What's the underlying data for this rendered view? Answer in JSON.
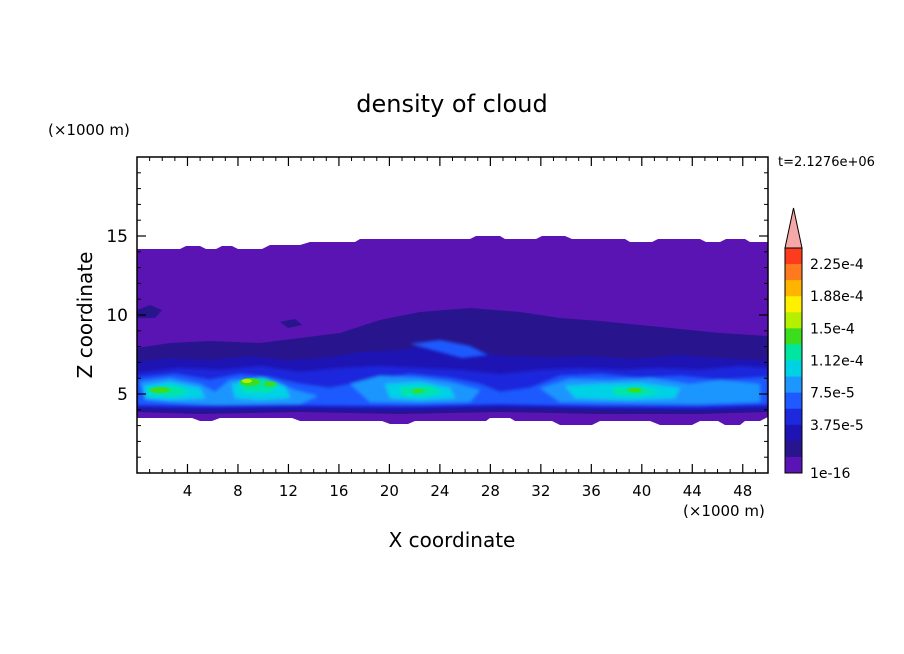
{
  "chart_data": {
    "type": "heatmap",
    "title": "density of cloud",
    "xlabel": "X coordinate",
    "ylabel": "Z coordinate",
    "x_unit": "(×1000 m)",
    "y_unit": "(×1000 m)",
    "time_label": "t=2.1276e+06",
    "xlim": [
      0,
      50
    ],
    "ylim": [
      0,
      20
    ],
    "x_ticks": [
      4,
      8,
      12,
      16,
      20,
      24,
      28,
      32,
      36,
      40,
      44,
      48
    ],
    "y_ticks": [
      5,
      10,
      15
    ],
    "colorbar_labels": [
      "2.25e-4",
      "1.88e-4",
      "1.5e-4",
      "1.12e-4",
      "7.5e-5",
      "3.75e-5",
      "1e-16"
    ],
    "colorbar_colors": [
      "#ff3b1e",
      "#ff7a1e",
      "#ffb400",
      "#fff000",
      "#b4f000",
      "#3cdc1e",
      "#00e6a0",
      "#00d2e6",
      "#1e96ff",
      "#1e5aff",
      "#1e28dc",
      "#1e14b4",
      "#28148c",
      "#5a14b4"
    ],
    "colorbar_extend_color": "#f6a7a7"
  }
}
